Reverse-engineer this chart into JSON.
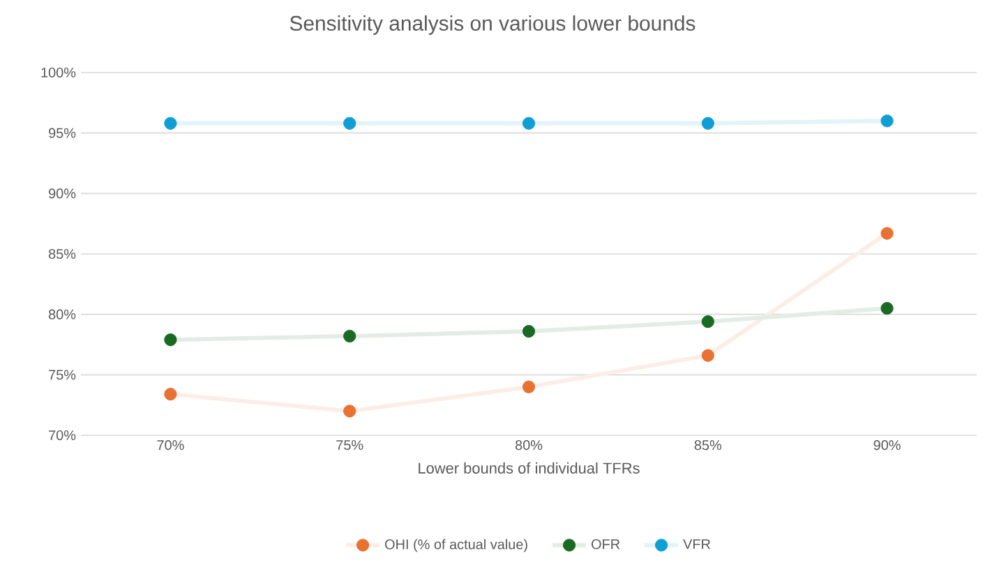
{
  "chart_data": {
    "type": "line",
    "title": "Sensitivity analysis on various lower bounds",
    "xlabel": "Lower bounds of individual TFRs",
    "categories": [
      "70%",
      "75%",
      "80%",
      "85%",
      "90%"
    ],
    "series": [
      {
        "name": "OHI (% of actual value)",
        "color": "#e97132",
        "values": [
          73.4,
          72.0,
          74.0,
          76.6,
          86.7
        ]
      },
      {
        "name": "OFR",
        "color": "#196b24",
        "values": [
          77.9,
          78.2,
          78.6,
          79.4,
          80.5
        ]
      },
      {
        "name": "VFR",
        "color": "#0f9ed5",
        "values": [
          95.8,
          95.8,
          95.8,
          95.8,
          96.0
        ]
      }
    ],
    "ylim": [
      70,
      100
    ],
    "yticks": [
      {
        "value": 70,
        "label": "70%"
      },
      {
        "value": 75,
        "label": "75%"
      },
      {
        "value": 80,
        "label": "80%"
      },
      {
        "value": 85,
        "label": "85%"
      },
      {
        "value": 90,
        "label": "90%"
      },
      {
        "value": 95,
        "label": "95%"
      },
      {
        "value": 100,
        "label": "100%"
      }
    ],
    "grid": "y",
    "legend": "bottom",
    "marker": "circle",
    "line_style": "solid"
  }
}
